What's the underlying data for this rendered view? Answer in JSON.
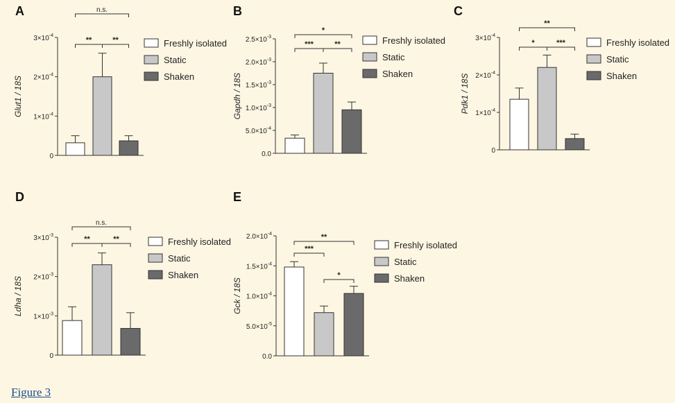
{
  "figure_link": "Figure 3",
  "legend_labels": [
    "Freshly isolated",
    "Static",
    "Shaken"
  ],
  "colors": {
    "freshly": "#ffffff",
    "static": "#c8c8c8",
    "shaken": "#6a6a6a",
    "stroke": "#333333",
    "background": "#fdf6e3"
  },
  "chart_data": [
    {
      "panel": "A",
      "type": "bar",
      "categories": [
        "Freshly isolated",
        "Static",
        "Shaken"
      ],
      "values": [
        3.2e-05,
        0.0002,
        3.7e-05
      ],
      "errors": [
        1.8e-05,
        6e-05,
        1.3e-05
      ],
      "ylabel": "Glut1 / 18S",
      "ylim": [
        0,
        0.0003
      ],
      "yticks": [
        {
          "value": 0,
          "label": "0",
          "exp": ""
        },
        {
          "value": 0.0001,
          "label": "1×10",
          "exp": "-4"
        },
        {
          "value": 0.0002,
          "label": "2×10",
          "exp": "-4"
        },
        {
          "value": 0.0003,
          "label": "3×10",
          "exp": "-4"
        }
      ],
      "sig": [
        {
          "from": 0,
          "to": 1,
          "text": "**"
        },
        {
          "from": 1,
          "to": 2,
          "text": "**"
        },
        {
          "from": 0,
          "to": 2,
          "text": "n.s."
        }
      ]
    },
    {
      "panel": "B",
      "type": "bar",
      "categories": [
        "Freshly isolated",
        "Static",
        "Shaken"
      ],
      "values": [
        0.00033,
        0.00175,
        0.00095
      ],
      "errors": [
        7e-05,
        0.00022,
        0.00017
      ],
      "ylabel": "Gapdh / 18S",
      "ylim": [
        0,
        0.0025
      ],
      "yticks": [
        {
          "value": 0,
          "label": "0.0",
          "exp": ""
        },
        {
          "value": 0.0005,
          "label": "5.0×10",
          "exp": "-4"
        },
        {
          "value": 0.001,
          "label": "1.0×10",
          "exp": "-3"
        },
        {
          "value": 0.0015,
          "label": "1.5×10",
          "exp": "-3"
        },
        {
          "value": 0.002,
          "label": "2.0×10",
          "exp": "-3"
        },
        {
          "value": 0.0025,
          "label": "2.5×10",
          "exp": "-3"
        }
      ],
      "sig": [
        {
          "from": 0,
          "to": 1,
          "text": "***"
        },
        {
          "from": 1,
          "to": 2,
          "text": "**"
        },
        {
          "from": 0,
          "to": 2,
          "text": "*"
        }
      ]
    },
    {
      "panel": "C",
      "type": "bar",
      "categories": [
        "Freshly isolated",
        "Static",
        "Shaken"
      ],
      "values": [
        0.000135,
        0.00022,
        3e-05
      ],
      "errors": [
        3e-05,
        3.3e-05,
        1.2e-05
      ],
      "ylabel": "Pdk1 / 18S",
      "ylim": [
        0,
        0.0003
      ],
      "yticks": [
        {
          "value": 0,
          "label": "0",
          "exp": ""
        },
        {
          "value": 0.0001,
          "label": "1×10",
          "exp": "-4"
        },
        {
          "value": 0.0002,
          "label": "2×10",
          "exp": "-4"
        },
        {
          "value": 0.0003,
          "label": "3×10",
          "exp": "-4"
        }
      ],
      "sig": [
        {
          "from": 0,
          "to": 1,
          "text": "*"
        },
        {
          "from": 1,
          "to": 2,
          "text": "***"
        },
        {
          "from": 0,
          "to": 2,
          "text": "**"
        }
      ]
    },
    {
      "panel": "D",
      "type": "bar",
      "categories": [
        "Freshly isolated",
        "Static",
        "Shaken"
      ],
      "values": [
        0.00088,
        0.0023,
        0.00068
      ],
      "errors": [
        0.00035,
        0.0003,
        0.0004
      ],
      "ylabel": "Ldha / 18S",
      "ylim": [
        0,
        0.003
      ],
      "yticks": [
        {
          "value": 0,
          "label": "0",
          "exp": ""
        },
        {
          "value": 0.001,
          "label": "1×10",
          "exp": "-3"
        },
        {
          "value": 0.002,
          "label": "2×10",
          "exp": "-3"
        },
        {
          "value": 0.003,
          "label": "3×10",
          "exp": "-3"
        }
      ],
      "sig": [
        {
          "from": 0,
          "to": 1,
          "text": "**"
        },
        {
          "from": 1,
          "to": 2,
          "text": "**"
        },
        {
          "from": 0,
          "to": 2,
          "text": "n.s."
        }
      ]
    },
    {
      "panel": "E",
      "type": "bar",
      "categories": [
        "Freshly isolated",
        "Static",
        "Shaken"
      ],
      "values": [
        0.000148,
        7.2e-05,
        0.000104
      ],
      "errors": [
        9e-06,
        1.1e-05,
        1.2e-05
      ],
      "ylabel": "Gck / 18S",
      "ylim": [
        0,
        0.0002
      ],
      "yticks": [
        {
          "value": 0,
          "label": "0.0",
          "exp": ""
        },
        {
          "value": 5e-05,
          "label": "5.0×10",
          "exp": "-5"
        },
        {
          "value": 0.0001,
          "label": "1.0×10",
          "exp": "-4"
        },
        {
          "value": 0.00015,
          "label": "1.5×10",
          "exp": "-4"
        },
        {
          "value": 0.0002,
          "label": "2.0×10",
          "exp": "-4"
        }
      ],
      "sig": [
        {
          "from": 0,
          "to": 1,
          "text": "***"
        },
        {
          "from": 1,
          "to": 2,
          "text": "*"
        },
        {
          "from": 0,
          "to": 2,
          "text": "**"
        }
      ]
    }
  ]
}
